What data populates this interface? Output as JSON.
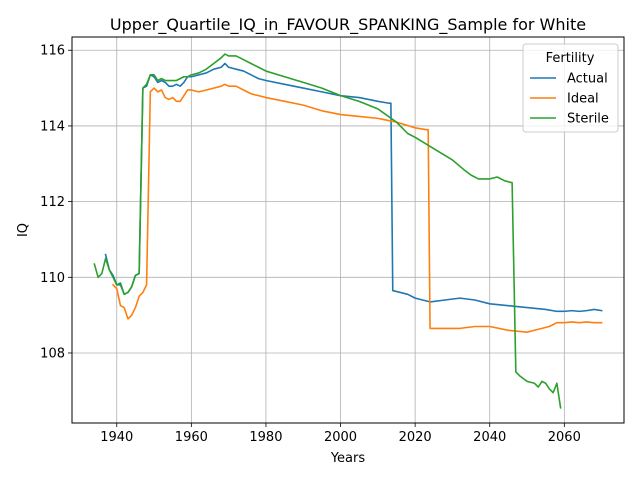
{
  "chart_data": {
    "type": "line",
    "title": "Upper_Quartile_IQ_in_FAVOUR_SPANKING_Sample for White",
    "xlabel": "Years",
    "ylabel": "IQ",
    "xlim": [
      1928,
      2076
    ],
    "ylim": [
      106.15,
      116.35
    ],
    "xticks": [
      1940,
      1960,
      1980,
      2000,
      2020,
      2040,
      2060
    ],
    "yticks": [
      108,
      110,
      112,
      114,
      116
    ],
    "grid": true,
    "legend": {
      "title": "Fertility",
      "position": "top-right"
    },
    "series": [
      {
        "name": "Actual",
        "color": "#1f77b4",
        "x": [
          1937,
          1938,
          1939,
          1940,
          1941,
          1942,
          1943,
          1944,
          1945,
          1946,
          1947,
          1948,
          1949,
          1950,
          1951,
          1952,
          1953,
          1954,
          1955,
          1956,
          1957,
          1958,
          1959,
          1960,
          1962,
          1964,
          1966,
          1968,
          1969,
          1970,
          1972,
          1974,
          1976,
          1978,
          1980,
          1985,
          1990,
          1995,
          2000,
          2005,
          2010,
          2013,
          2013.5,
          2014,
          2016,
          2018,
          2020,
          2022,
          2024,
          2028,
          2032,
          2036,
          2040,
          2045,
          2050,
          2055,
          2058,
          2060,
          2062,
          2064,
          2066,
          2068,
          2070
        ],
        "values": [
          110.6,
          110.2,
          110.05,
          109.8,
          109.8,
          109.55,
          109.6,
          109.75,
          110.05,
          110.1,
          115.0,
          115.05,
          115.35,
          115.3,
          115.15,
          115.2,
          115.15,
          115.05,
          115.05,
          115.1,
          115.05,
          115.15,
          115.3,
          115.3,
          115.35,
          115.4,
          115.5,
          115.55,
          115.65,
          115.55,
          115.5,
          115.45,
          115.35,
          115.25,
          115.2,
          115.1,
          115.0,
          114.9,
          114.8,
          114.75,
          114.65,
          114.6,
          114.6,
          109.65,
          109.6,
          109.55,
          109.45,
          109.4,
          109.35,
          109.4,
          109.45,
          109.4,
          109.3,
          109.25,
          109.2,
          109.15,
          109.1,
          109.1,
          109.12,
          109.1,
          109.12,
          109.15,
          109.12
        ]
      },
      {
        "name": "Ideal",
        "color": "#ff7f0e",
        "x": [
          1939,
          1940,
          1941,
          1942,
          1943,
          1944,
          1945,
          1946,
          1947,
          1948,
          1949,
          1950,
          1951,
          1952,
          1953,
          1954,
          1955,
          1956,
          1957,
          1958,
          1959,
          1960,
          1962,
          1964,
          1966,
          1968,
          1969,
          1970,
          1972,
          1974,
          1976,
          1978,
          1980,
          1985,
          1990,
          1995,
          2000,
          2005,
          2010,
          2015,
          2020,
          2023,
          2023.5,
          2024,
          2028,
          2032,
          2036,
          2040,
          2045,
          2050,
          2052,
          2054,
          2056,
          2058,
          2060,
          2062,
          2064,
          2066,
          2068,
          2070
        ],
        "values": [
          109.8,
          109.7,
          109.25,
          109.2,
          108.9,
          109.0,
          109.2,
          109.5,
          109.6,
          109.8,
          114.9,
          115.0,
          114.9,
          114.95,
          114.75,
          114.7,
          114.75,
          114.65,
          114.65,
          114.8,
          114.95,
          114.95,
          114.9,
          114.95,
          115.0,
          115.05,
          115.1,
          115.05,
          115.05,
          114.95,
          114.85,
          114.8,
          114.75,
          114.65,
          114.55,
          114.4,
          114.3,
          114.25,
          114.2,
          114.1,
          113.95,
          113.9,
          113.9,
          108.65,
          108.65,
          108.65,
          108.7,
          108.7,
          108.6,
          108.55,
          108.6,
          108.65,
          108.7,
          108.8,
          108.8,
          108.82,
          108.8,
          108.82,
          108.8,
          108.8
        ]
      },
      {
        "name": "Sterile",
        "color": "#2ca02c",
        "x": [
          1934,
          1935,
          1936,
          1937,
          1938,
          1939,
          1940,
          1941,
          1942,
          1943,
          1944,
          1945,
          1946,
          1947,
          1948,
          1949,
          1950,
          1951,
          1952,
          1953,
          1954,
          1955,
          1956,
          1957,
          1958,
          1959,
          1960,
          1962,
          1964,
          1966,
          1968,
          1969,
          1970,
          1972,
          1974,
          1976,
          1978,
          1980,
          1985,
          1990,
          1995,
          2000,
          2005,
          2010,
          2015,
          2018,
          2020,
          2025,
          2030,
          2033,
          2035,
          2037,
          2040,
          2042,
          2044,
          2046,
          2047,
          2048,
          2050,
          2052,
          2053,
          2054,
          2055,
          2056,
          2057,
          2058,
          2059
        ],
        "values": [
          110.35,
          110.0,
          110.1,
          110.5,
          110.2,
          110.0,
          109.8,
          109.85,
          109.55,
          109.6,
          109.75,
          110.05,
          110.1,
          115.0,
          115.1,
          115.35,
          115.35,
          115.2,
          115.25,
          115.2,
          115.2,
          115.2,
          115.2,
          115.25,
          115.3,
          115.3,
          115.35,
          115.4,
          115.5,
          115.65,
          115.8,
          115.9,
          115.85,
          115.85,
          115.75,
          115.65,
          115.55,
          115.45,
          115.3,
          115.15,
          115.0,
          114.8,
          114.65,
          114.45,
          114.1,
          113.8,
          113.7,
          113.4,
          113.1,
          112.85,
          112.7,
          112.6,
          112.6,
          112.65,
          112.55,
          112.5,
          107.5,
          107.4,
          107.25,
          107.2,
          107.1,
          107.25,
          107.2,
          107.05,
          106.95,
          107.2,
          106.55
        ]
      }
    ]
  }
}
